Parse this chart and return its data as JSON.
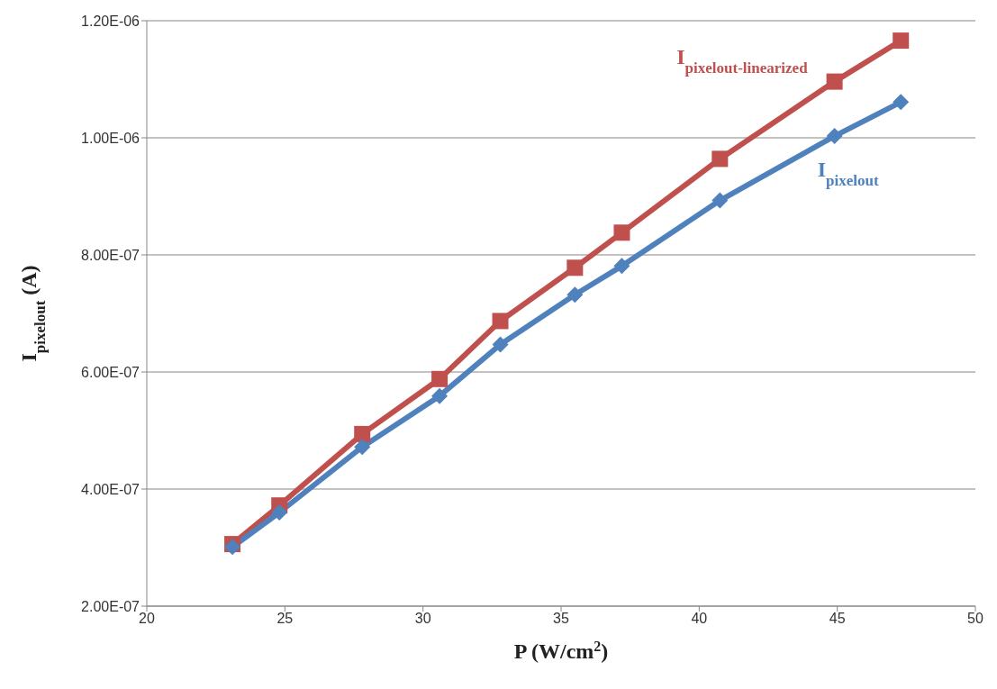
{
  "chart_data": {
    "type": "line",
    "xlabel": "P (W/cm$^{2}$)",
    "ylabel": "I$_{pixelout}$ (A)",
    "x": [
      23.1,
      24.8,
      27.8,
      30.6,
      32.8,
      35.5,
      37.2,
      40.75,
      44.9,
      47.3
    ],
    "series": [
      {
        "name": "I$_{pixelout-linearized}$",
        "color": "#c0504d",
        "marker": "square",
        "values": [
          3.06e-07,
          3.72e-07,
          4.94e-07,
          5.88e-07,
          6.87e-07,
          7.78e-07,
          8.38e-07,
          9.64e-07,
          1.096e-06,
          1.166e-06
        ]
      },
      {
        "name": "I$_{pixelout}$",
        "color": "#4f81bd",
        "marker": "diamond",
        "values": [
          3.01e-07,
          3.6e-07,
          4.72e-07,
          5.59e-07,
          6.47e-07,
          7.32e-07,
          7.81e-07,
          8.93e-07,
          1.003e-06,
          1.061e-06
        ]
      }
    ],
    "xlim": [
      20,
      50
    ],
    "xticks": [
      20,
      25,
      30,
      35,
      40,
      45,
      50
    ],
    "ylim": [
      2e-07,
      1.2e-06
    ],
    "yticks": [
      {
        "value": 2e-07,
        "label": "2.00E-07"
      },
      {
        "value": 4e-07,
        "label": "4.00E-07"
      },
      {
        "value": 6e-07,
        "label": "6.00E-07"
      },
      {
        "value": 8e-07,
        "label": "8.00E-07"
      },
      {
        "value": 1e-06,
        "label": "1.00E-06"
      },
      {
        "value": 1.2e-06,
        "label": "1.20E-06"
      }
    ],
    "grid": "y",
    "legend": false
  }
}
